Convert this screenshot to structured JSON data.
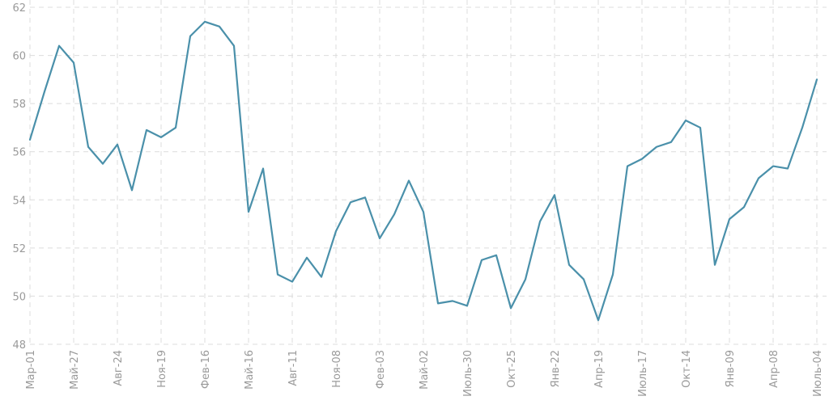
{
  "chart_data": {
    "type": "line",
    "title": "",
    "xlabel": "",
    "ylabel": "",
    "ylim": [
      48,
      62
    ],
    "yticks": [
      48,
      50,
      52,
      54,
      56,
      58,
      60,
      62
    ],
    "grid": true,
    "x_tick_labels": [
      "Мар-01",
      "Май-27",
      "Авг-24",
      "Ноя-19",
      "Фев-16",
      "Май-16",
      "Авг-11",
      "Ноя-08",
      "Фев-03",
      "Май-02",
      "Июль-30",
      "Окт-25",
      "Янв-22",
      "Апр-19",
      "Июль-17",
      "Окт-14",
      "Янв-09",
      "Апр-08",
      "Июль-04"
    ],
    "series": [
      {
        "color": "#4a90aa",
        "values": [
          56.5,
          58.5,
          60.4,
          59.7,
          56.2,
          55.5,
          56.3,
          54.4,
          56.9,
          56.6,
          57.0,
          60.8,
          61.4,
          61.2,
          60.4,
          53.5,
          55.3,
          50.9,
          50.6,
          51.6,
          50.8,
          52.7,
          53.9,
          54.1,
          52.4,
          53.4,
          54.8,
          53.5,
          49.7,
          49.8,
          49.6,
          51.5,
          51.7,
          49.5,
          50.7,
          53.1,
          54.2,
          51.3,
          50.7,
          49.0,
          50.9,
          55.4,
          55.7,
          56.2,
          56.4,
          57.3,
          57.0,
          51.3,
          53.2,
          53.7,
          54.9,
          55.4,
          55.3,
          57.0,
          59.0
        ]
      }
    ]
  }
}
